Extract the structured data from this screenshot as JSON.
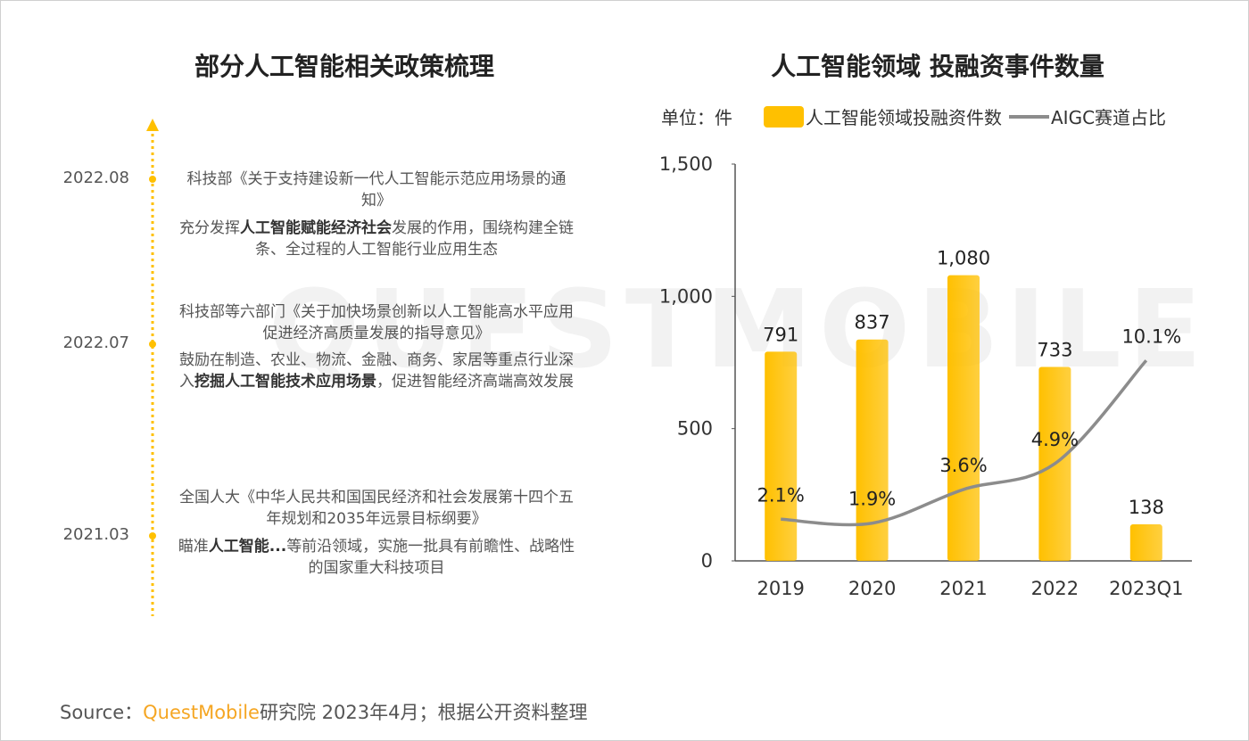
{
  "watermark": "QUESTMOBILE",
  "timeline": {
    "title": "部分人工智能相关政策梳理",
    "events": [
      {
        "date": "2022.08",
        "policy": "科技部《关于支持建设新一代人工智能示范应用场景的通知》",
        "description": [
          {
            "text": "充分发挥"
          },
          {
            "text": "人工智能赋能经济社会",
            "bold": true
          },
          {
            "text": "发展的作用，围绕构建全链条、全过程的人工智能行业应用生态"
          }
        ]
      },
      {
        "date": "2022.07",
        "policy": "科技部等六部门《关于加快场景创新以人工智能高水平应用促进经济高质量发展的指导意见》",
        "description": [
          {
            "text": "鼓励在制造、农业、物流、金融、商务、家居等重点行业深入"
          },
          {
            "text": "挖掘人工智能技术应用场景",
            "bold": true
          },
          {
            "text": "，促进智能经济高端高效发展"
          }
        ]
      },
      {
        "date": "2021.03",
        "policy": "全国人大《中华人民共和国国民经济和社会发展第十四个五年规划和2035年远景目标纲要》",
        "description": [
          {
            "text": "瞄准"
          },
          {
            "text": "人工智能...",
            "bold": true
          },
          {
            "text": "等前沿领域，实施一批具有前瞻性、战略性的国家重大科技项目"
          }
        ]
      }
    ]
  },
  "chart_data": {
    "type": "bar",
    "title": "人工智能领域 投融资事件数量",
    "unit": "单位：件",
    "categories": [
      "2019",
      "2020",
      "2021",
      "2022",
      "2023Q1"
    ],
    "series": [
      {
        "name": "人工智能领域投融资件数",
        "type": "bar",
        "color": "#ffc000",
        "values": [
          791,
          837,
          1080,
          733,
          138
        ],
        "value_labels": [
          "791",
          "837",
          "1,080",
          "733",
          "138"
        ]
      },
      {
        "name": "AIGC赛道占比",
        "type": "line",
        "axis": "y2",
        "color": "#8c8c8c",
        "values": [
          2.1,
          1.9,
          3.6,
          4.9,
          10.1
        ],
        "value_labels": [
          "2.1%",
          "1.9%",
          "3.6%",
          "4.9%",
          "10.1%"
        ]
      }
    ],
    "ylim": [
      0,
      1500
    ],
    "yticks": [
      0,
      500,
      {
        "value": 1000,
        "label": "1,000"
      },
      {
        "value": 1500,
        "label": "1,500"
      }
    ],
    "y2lim": [
      0,
      20
    ],
    "grid": false
  },
  "source": [
    {
      "text": "Source："
    },
    {
      "text": "QuestMobile",
      "highlight": true
    },
    {
      "text": "研究院 2023年4月；根据公开资料整理"
    }
  ]
}
